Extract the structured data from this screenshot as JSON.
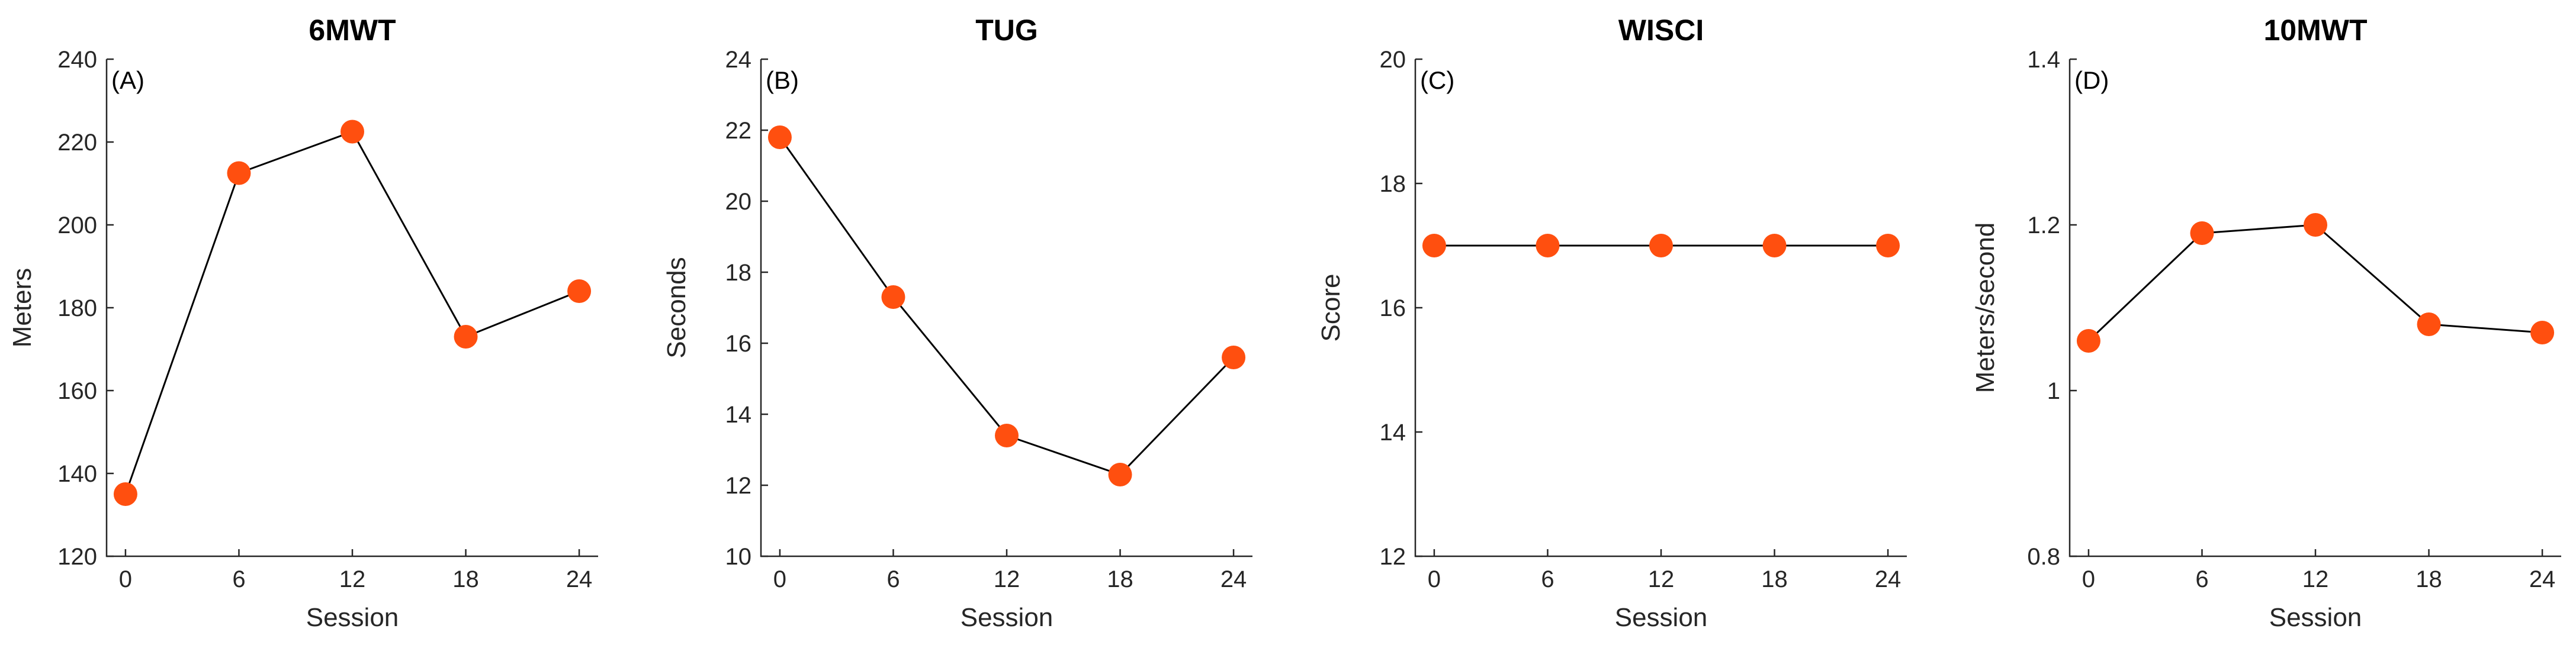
{
  "colors": {
    "marker": "#FF4F0F",
    "line": "#000000",
    "axis": "#262626"
  },
  "chart_data": [
    {
      "type": "line",
      "title": "6MWT",
      "panel_label": "(A)",
      "xlabel": "Session",
      "ylabel": "Meters",
      "x": [
        0,
        6,
        12,
        18,
        24
      ],
      "x_ticks": [
        "0",
        "6",
        "12",
        "18",
        "24"
      ],
      "xlim": [
        -1,
        25
      ],
      "ylim": [
        120,
        240
      ],
      "y_ticks": [
        "120",
        "140",
        "160",
        "180",
        "200",
        "220",
        "240"
      ],
      "series": [
        {
          "values": [
            135,
            212.5,
            222.5,
            173,
            184
          ]
        }
      ]
    },
    {
      "type": "line",
      "title": "TUG",
      "panel_label": "(B)",
      "xlabel": "Session",
      "ylabel": "Seconds",
      "x": [
        0,
        6,
        12,
        18,
        24
      ],
      "x_ticks": [
        "0",
        "6",
        "12",
        "18",
        "24"
      ],
      "xlim": [
        -1,
        25
      ],
      "ylim": [
        10,
        24
      ],
      "y_ticks": [
        "10",
        "12",
        "14",
        "16",
        "18",
        "20",
        "22",
        "24"
      ],
      "series": [
        {
          "values": [
            21.8,
            17.3,
            13.4,
            12.3,
            15.6
          ]
        }
      ]
    },
    {
      "type": "line",
      "title": "WISCI",
      "panel_label": "(C)",
      "xlabel": "Session",
      "ylabel": "Score",
      "x": [
        0,
        6,
        12,
        18,
        24
      ],
      "x_ticks": [
        "0",
        "6",
        "12",
        "18",
        "24"
      ],
      "xlim": [
        -1,
        25
      ],
      "ylim": [
        12,
        20
      ],
      "y_ticks": [
        "12",
        "14",
        "16",
        "18",
        "20"
      ],
      "series": [
        {
          "values": [
            17,
            17,
            17,
            17,
            17
          ]
        }
      ]
    },
    {
      "type": "line",
      "title": "10MWT",
      "panel_label": "(D)",
      "xlabel": "Session",
      "ylabel": "Meters/second",
      "x": [
        0,
        6,
        12,
        18,
        24
      ],
      "x_ticks": [
        "0",
        "6",
        "12",
        "18",
        "24"
      ],
      "xlim": [
        -1,
        25
      ],
      "ylim": [
        0.8,
        1.4
      ],
      "y_ticks": [
        "0.8",
        "1",
        "1.2",
        "1.4"
      ],
      "series": [
        {
          "values": [
            1.06,
            1.19,
            1.2,
            1.08,
            1.07
          ]
        }
      ]
    }
  ]
}
